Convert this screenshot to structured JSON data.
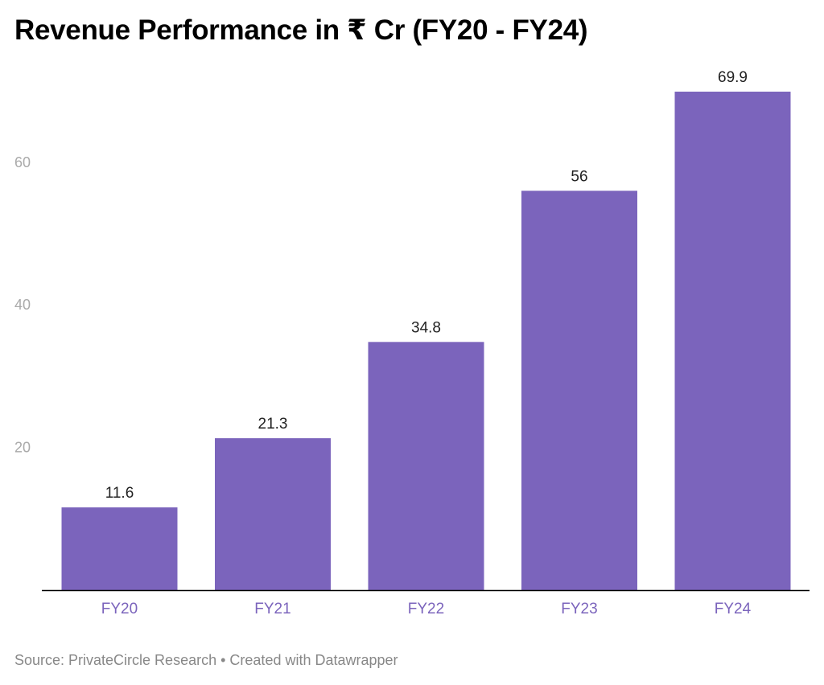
{
  "title": "Revenue Performance in ₹ Cr (FY20 - FY24)",
  "footer": {
    "source": "Source: PrivateCircle Research",
    "separator": "•",
    "credit": "Created with Datawrapper"
  },
  "colors": {
    "bar": "#7b64bc",
    "category_label": "#7b64bc",
    "axis_label": "#aaaaaa",
    "value_label": "#222222",
    "baseline": "#000000"
  },
  "chart_data": {
    "type": "bar",
    "categories": [
      "FY20",
      "FY21",
      "FY22",
      "FY23",
      "FY24"
    ],
    "values": [
      11.6,
      21.3,
      34.8,
      56,
      69.9
    ],
    "value_labels": [
      "11.6",
      "21.3",
      "34.8",
      "56",
      "69.9"
    ],
    "ylim": [
      0,
      70
    ],
    "yticks": [
      20,
      40,
      60
    ],
    "title": "Revenue Performance in ₹ Cr (FY20 - FY24)",
    "xlabel": "",
    "ylabel": "",
    "grid": false,
    "legend": "none"
  }
}
